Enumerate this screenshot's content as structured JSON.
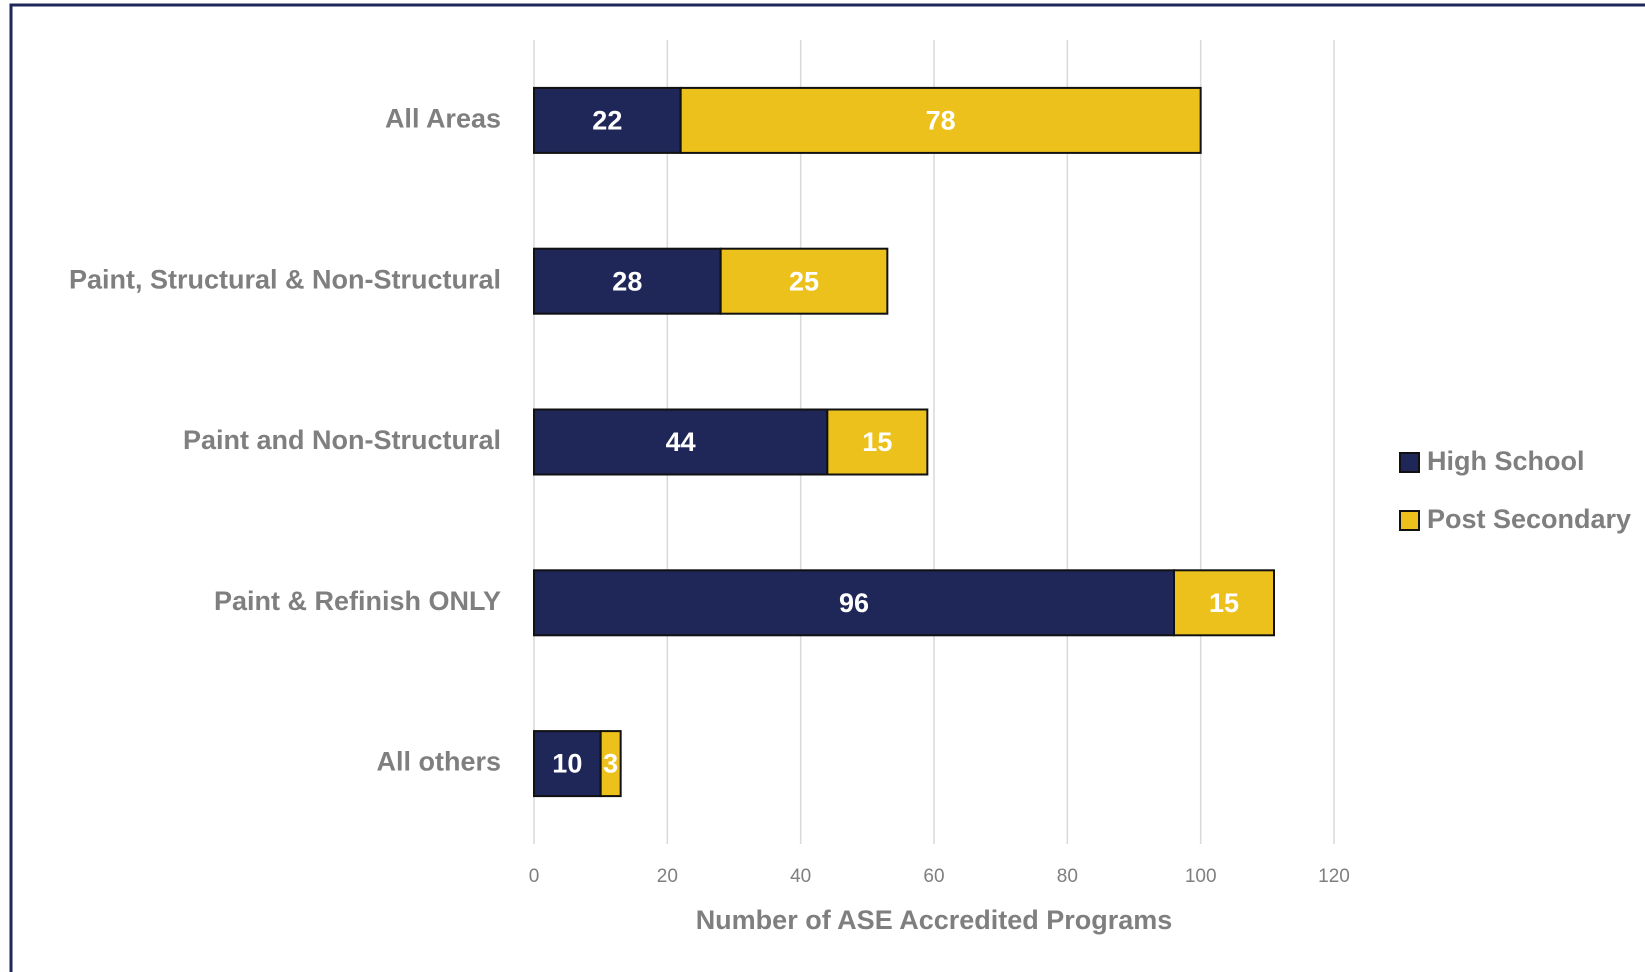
{
  "chart_data": {
    "type": "bar",
    "orientation": "horizontal",
    "stacked": true,
    "xlabel": "Number of ASE Accredited Programs",
    "categories": [
      "All Areas",
      "Paint, Structural & Non-Structural",
      "Paint and Non-Structural",
      "Paint & Refinish ONLY",
      "All others"
    ],
    "series": [
      {
        "name": "High School",
        "color": "#1f2759",
        "values": [
          22,
          28,
          44,
          96,
          10
        ]
      },
      {
        "name": "Post Secondary",
        "color": "#ecc11c",
        "values": [
          78,
          25,
          15,
          15,
          3
        ]
      }
    ],
    "xlim": [
      0,
      120
    ],
    "xticks": [
      0,
      20,
      40,
      60,
      80,
      100,
      120
    ],
    "grid": true,
    "legend": "right"
  }
}
